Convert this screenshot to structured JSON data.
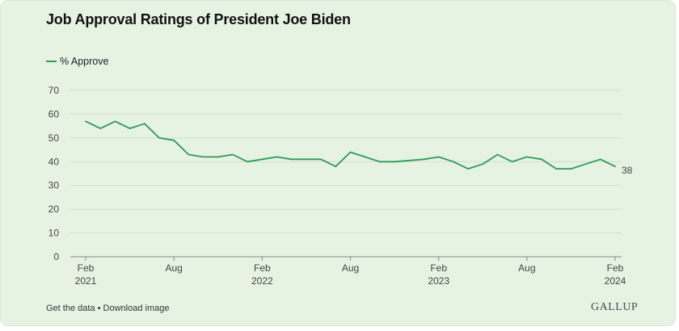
{
  "title": "Job Approval Ratings of President Joe Biden",
  "footer": {
    "get_data": "Get the data",
    "separator": "•",
    "download": "Download image"
  },
  "brand": "GALLUP",
  "colors": {
    "line": "#2f9a5a",
    "background": "#e6f3e3",
    "grid": "#cfdfcc"
  },
  "chart_data": {
    "type": "line",
    "title": "Job Approval Ratings of President Joe Biden",
    "xlabel": "",
    "ylabel": "",
    "ylim": [
      0,
      70
    ],
    "yticks": [
      0,
      10,
      20,
      30,
      40,
      50,
      60,
      70
    ],
    "xlim": [
      "2021-01",
      "2024-02"
    ],
    "xticks": [
      {
        "date": "2021-02",
        "label": [
          "Feb",
          "2021"
        ]
      },
      {
        "date": "2021-08",
        "label": [
          "Aug",
          ""
        ]
      },
      {
        "date": "2022-02",
        "label": [
          "Feb",
          "2022"
        ]
      },
      {
        "date": "2022-08",
        "label": [
          "Aug",
          ""
        ]
      },
      {
        "date": "2023-02",
        "label": [
          "Feb",
          "2023"
        ]
      },
      {
        "date": "2023-08",
        "label": [
          "Aug",
          ""
        ]
      },
      {
        "date": "2024-02",
        "label": [
          "Feb",
          "2024"
        ]
      }
    ],
    "grid": true,
    "legend_position": "top-left",
    "series": [
      {
        "name": "% Approve",
        "end_label": "38",
        "x": [
          "2021-02",
          "2021-03",
          "2021-04",
          "2021-05",
          "2021-06",
          "2021-07",
          "2021-08",
          "2021-09",
          "2021-10",
          "2021-11",
          "2021-12",
          "2022-01",
          "2022-02",
          "2022-03",
          "2022-04",
          "2022-05",
          "2022-06",
          "2022-07",
          "2022-08",
          "2022-09",
          "2022-10",
          "2022-11",
          "2022-12",
          "2023-01",
          "2023-02",
          "2023-03",
          "2023-04",
          "2023-05",
          "2023-06",
          "2023-07",
          "2023-08",
          "2023-09",
          "2023-10",
          "2023-11",
          "2023-12",
          "2024-01",
          "2024-02"
        ],
        "values": [
          57,
          54,
          57,
          54,
          56,
          50,
          49,
          43,
          42,
          42,
          43,
          40,
          41,
          42,
          41,
          41,
          41,
          38,
          44,
          42,
          40,
          40,
          40.5,
          41,
          42,
          40,
          37,
          39,
          43,
          40,
          42,
          41,
          37,
          37,
          39,
          41,
          38
        ]
      }
    ]
  }
}
